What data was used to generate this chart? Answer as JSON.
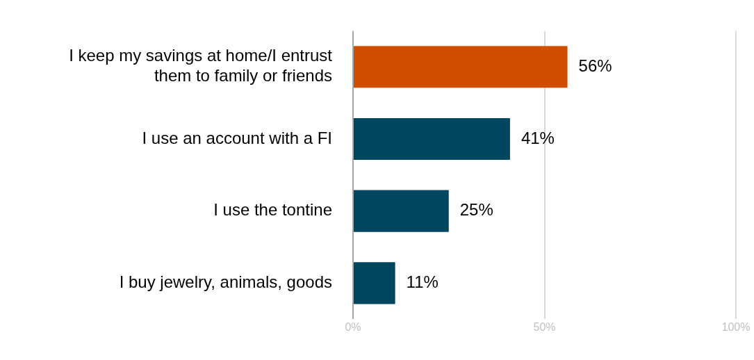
{
  "chart_data": {
    "type": "bar",
    "orientation": "horizontal",
    "categories": [
      "I keep my savings at home/I entrust them to family or friends",
      "I use an account with a FI",
      "I use the tontine",
      "I buy jewelry, animals, goods"
    ],
    "values": [
      56,
      41,
      25,
      11
    ],
    "colors": [
      "#d04e00",
      "#00465e",
      "#00465e",
      "#00465e"
    ],
    "value_labels": [
      "56%",
      "41%",
      "25%",
      "11%"
    ],
    "xlim": [
      0,
      100
    ],
    "xticks": [
      {
        "value": 0,
        "label": "0%"
      },
      {
        "value": 50,
        "label": "50%"
      },
      {
        "value": 100,
        "label": "100%"
      }
    ],
    "grid": "x",
    "legend": false
  }
}
